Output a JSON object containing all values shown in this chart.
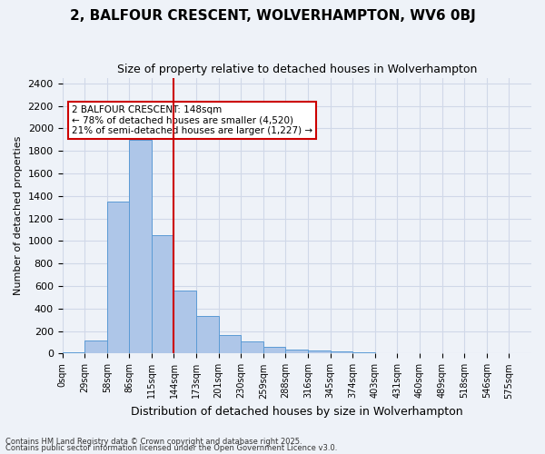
{
  "title": "2, BALFOUR CRESCENT, WOLVERHAMPTON, WV6 0BJ",
  "subtitle": "Size of property relative to detached houses in Wolverhampton",
  "xlabel": "Distribution of detached houses by size in Wolverhampton",
  "ylabel": "Number of detached properties",
  "bar_values": [
    10,
    120,
    1350,
    1900,
    1050,
    560,
    335,
    165,
    110,
    60,
    35,
    25,
    20,
    10,
    5,
    5,
    5,
    5,
    5,
    5
  ],
  "bin_labels": [
    "0sqm",
    "29sqm",
    "58sqm",
    "86sqm",
    "115sqm",
    "144sqm",
    "173sqm",
    "201sqm",
    "230sqm",
    "259sqm",
    "288sqm",
    "316sqm",
    "345sqm",
    "374sqm",
    "403sqm",
    "431sqm",
    "460sqm",
    "489sqm",
    "518sqm",
    "546sqm",
    "575sqm"
  ],
  "bar_color": "#aec6e8",
  "bar_edge_color": "#5b9bd5",
  "grid_color": "#d0d8e8",
  "background_color": "#eef2f8",
  "vline_color": "#cc0000",
  "annotation_text": "2 BALFOUR CRESCENT: 148sqm\n← 78% of detached houses are smaller (4,520)\n21% of semi-detached houses are larger (1,227) →",
  "annotation_box_color": "#ffffff",
  "annotation_box_edge": "#cc0000",
  "ylim": [
    0,
    2450
  ],
  "yticks": [
    0,
    200,
    400,
    600,
    800,
    1000,
    1200,
    1400,
    1600,
    1800,
    2000,
    2200,
    2400
  ],
  "footnote1": "Contains HM Land Registry data © Crown copyright and database right 2025.",
  "footnote2": "Contains public sector information licensed under the Open Government Licence v3.0."
}
